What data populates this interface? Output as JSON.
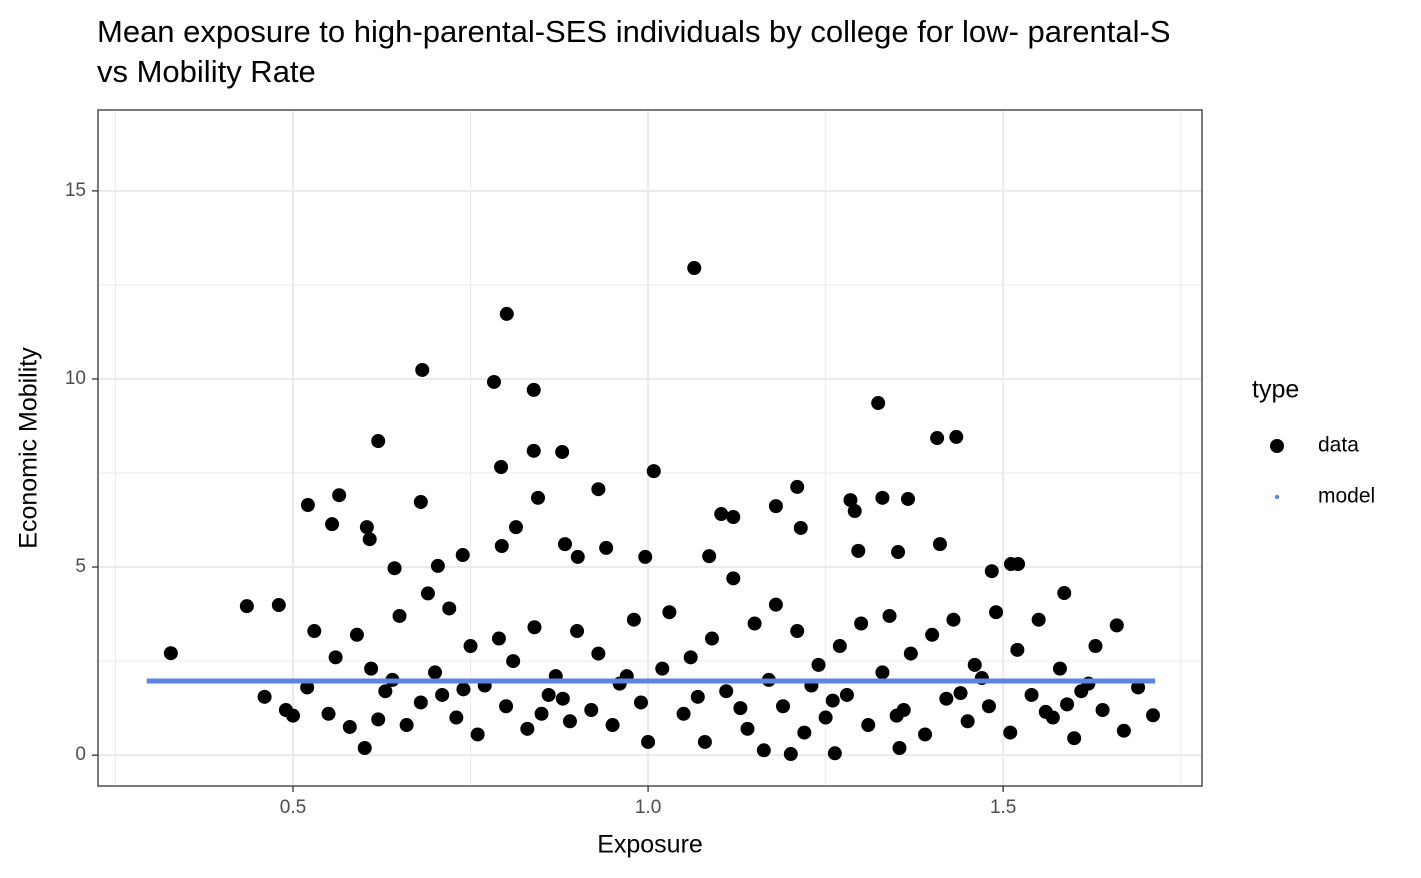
{
  "chart_data": {
    "type": "scatter",
    "title": [
      "Mean exposure to high-parental-SES individuals by college for low- parental-S",
      "vs Mobility Rate"
    ],
    "x_label": "Exposure",
    "y_label": "Economic Mobility",
    "legend_title": "type",
    "legend": "right",
    "grid": true,
    "xlim": [
      0.2254,
      1.78
    ],
    "ylim": [
      -0.82,
      17.15
    ],
    "xticks": [
      0.5,
      {
        "value": 1,
        "label": "1.0"
      },
      1.5
    ],
    "yticks": [
      0,
      5,
      10,
      15
    ],
    "xminor": [
      0.25,
      0.75,
      1.25,
      1.75
    ],
    "yminor": [
      2.5,
      7.5,
      12.5
    ],
    "series": [
      {
        "name": "data",
        "color": "#000000",
        "x": [
          0.328,
          0.435,
          0.48,
          0.521,
          0.565,
          0.555,
          0.604,
          0.608,
          0.62,
          0.682,
          0.68,
          0.643,
          0.704,
          0.739,
          0.783,
          0.801,
          0.839,
          0.793,
          0.839,
          0.879,
          0.845,
          0.814,
          0.794,
          0.883,
          0.93,
          0.901,
          0.941,
          0.996,
          1.008,
          1.065,
          1.103,
          1.12,
          1.086,
          1.18,
          1.21,
          1.215,
          1.324,
          1.285,
          1.291,
          1.33,
          1.366,
          1.296,
          1.352,
          1.407,
          1.434,
          1.411,
          1.484,
          1.511,
          1.521,
          1.586,
          1.711,
          0.601,
          1.163,
          1.201,
          1.263,
          1.354,
          0.46,
          0.49,
          0.5,
          0.52,
          0.53,
          0.55,
          0.56,
          0.58,
          0.59,
          0.61,
          0.62,
          0.63,
          0.65,
          0.66,
          0.68,
          0.69,
          0.7,
          0.72,
          0.73,
          0.75,
          0.76,
          0.77,
          0.79,
          0.8,
          0.81,
          0.83,
          0.84,
          0.86,
          0.87,
          0.89,
          0.9,
          0.92,
          0.93,
          0.95,
          0.96,
          0.98,
          0.99,
          1.0,
          1.02,
          1.03,
          1.05,
          1.06,
          1.08,
          1.09,
          1.11,
          1.12,
          1.14,
          1.15,
          1.17,
          1.18,
          1.19,
          1.21,
          1.22,
          1.24,
          1.25,
          1.27,
          1.28,
          1.3,
          1.31,
          1.33,
          1.34,
          1.36,
          1.37,
          1.39,
          1.4,
          1.42,
          1.43,
          1.45,
          1.46,
          1.48,
          1.49,
          1.51,
          1.52,
          1.54,
          1.55,
          1.57,
          1.58,
          1.6,
          1.61,
          1.63,
          1.64,
          1.66,
          1.67,
          1.69,
          0.71,
          0.88,
          1.07,
          1.26,
          1.44,
          1.59,
          0.64,
          0.74,
          0.85,
          0.97,
          1.13,
          1.23,
          1.35,
          1.47,
          1.56,
          1.62
        ],
        "values": [
          2.71,
          3.96,
          3.99,
          6.65,
          6.91,
          6.14,
          6.06,
          5.74,
          8.35,
          10.24,
          6.73,
          4.97,
          5.03,
          5.32,
          9.92,
          11.73,
          9.71,
          7.66,
          8.09,
          8.06,
          6.84,
          6.06,
          5.56,
          5.61,
          7.07,
          5.27,
          5.51,
          5.27,
          7.55,
          12.95,
          6.41,
          6.33,
          5.29,
          6.62,
          7.13,
          6.04,
          9.36,
          6.78,
          6.49,
          6.84,
          6.81,
          5.43,
          5.4,
          8.43,
          8.46,
          5.61,
          4.89,
          5.08,
          5.08,
          4.31,
          1.06,
          0.19,
          0.13,
          0.03,
          0.05,
          0.19,
          1.55,
          1.2,
          1.05,
          1.8,
          3.3,
          1.1,
          2.6,
          0.75,
          3.2,
          2.3,
          0.95,
          1.7,
          3.7,
          0.8,
          1.4,
          4.3,
          2.2,
          3.9,
          1.0,
          2.9,
          0.55,
          1.85,
          3.1,
          1.3,
          2.5,
          0.7,
          3.4,
          1.6,
          2.1,
          0.9,
          3.3,
          1.2,
          2.7,
          0.8,
          1.9,
          3.6,
          1.4,
          0.35,
          2.3,
          3.8,
          1.1,
          2.6,
          0.35,
          3.1,
          1.7,
          4.7,
          0.7,
          3.5,
          2.0,
          4.0,
          1.3,
          3.3,
          0.6,
          2.4,
          1.0,
          2.9,
          1.6,
          3.5,
          0.8,
          2.2,
          3.7,
          1.2,
          2.7,
          0.55,
          3.2,
          1.5,
          3.6,
          0.9,
          2.4,
          1.3,
          3.8,
          0.6,
          2.8,
          1.6,
          3.6,
          1.0,
          2.3,
          0.45,
          1.7,
          2.9,
          1.2,
          3.45,
          0.65,
          1.8,
          1.6,
          1.5,
          1.55,
          1.45,
          1.65,
          1.35,
          2.0,
          1.75,
          1.1,
          2.1,
          1.25,
          1.85,
          1.05,
          2.05,
          1.15,
          1.9
        ]
      },
      {
        "name": "model",
        "color": "#5b84e6",
        "type": "line",
        "x": [
          0.294,
          1.714
        ],
        "values": [
          1.97,
          1.97
        ]
      }
    ]
  }
}
